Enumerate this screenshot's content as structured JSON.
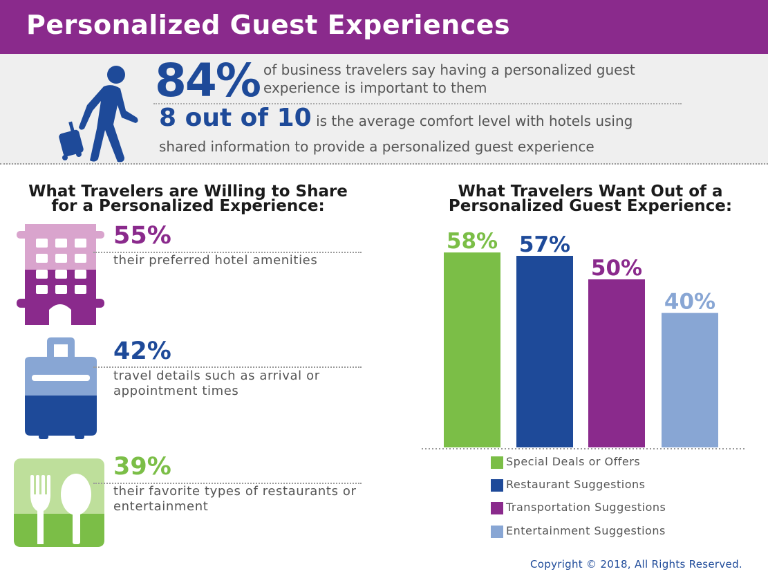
{
  "colors": {
    "purple": "#8a2a8c",
    "light_purple": "#d9a4cd",
    "dark_blue": "#1e4a99",
    "light_blue": "#88a6d4",
    "green": "#7bbe47",
    "light_green": "#bedf9b"
  },
  "header": {
    "title": "Personalized Guest Experiences"
  },
  "stats": {
    "icon": "traveler-with-luggage-icon",
    "stat1_value": "84%",
    "stat1_text": "of business travelers say having a personalized guest experience is important to them",
    "stat2_value": "8 out of 10",
    "stat2_text": " is the average comfort level with hotels using",
    "stat2_text_cont": "shared information to provide a personalized guest experience"
  },
  "willing_to_share": {
    "title": "What Travelers are Willing to Share for a Personalized Experience:",
    "items": [
      {
        "icon": "hotel-building-icon",
        "percent": "55%",
        "text": "their preferred hotel amenities"
      },
      {
        "icon": "suitcase-icon",
        "percent": "42%",
        "text": "travel details such as arrival or appointment times"
      },
      {
        "icon": "fork-spoon-icon",
        "percent": "39%",
        "text": "their favorite types of restaurants or entertainment"
      }
    ]
  },
  "want_out_of": {
    "title": "What Travelers Want Out of a Personalized Guest Experience:"
  },
  "chart_data": {
    "type": "bar",
    "title": "What Travelers Want Out of a Personalized Guest Experience:",
    "categories": [
      "Special Deals or Offers",
      "Restaurant Suggestions",
      "Transportation Suggestions",
      "Entertainment Suggestions"
    ],
    "values": [
      58,
      57,
      50,
      40
    ],
    "value_labels": [
      "58%",
      "57%",
      "50%",
      "40%"
    ],
    "colors": [
      "#7bbe47",
      "#1e4a99",
      "#8a2a8c",
      "#88a6d4"
    ],
    "xlabel": "",
    "ylabel": "",
    "ylim": [
      0,
      100
    ],
    "grid": false,
    "legend": "bottom"
  },
  "footer": {
    "copyright": "Copyright © 2018, All Rights Reserved."
  }
}
